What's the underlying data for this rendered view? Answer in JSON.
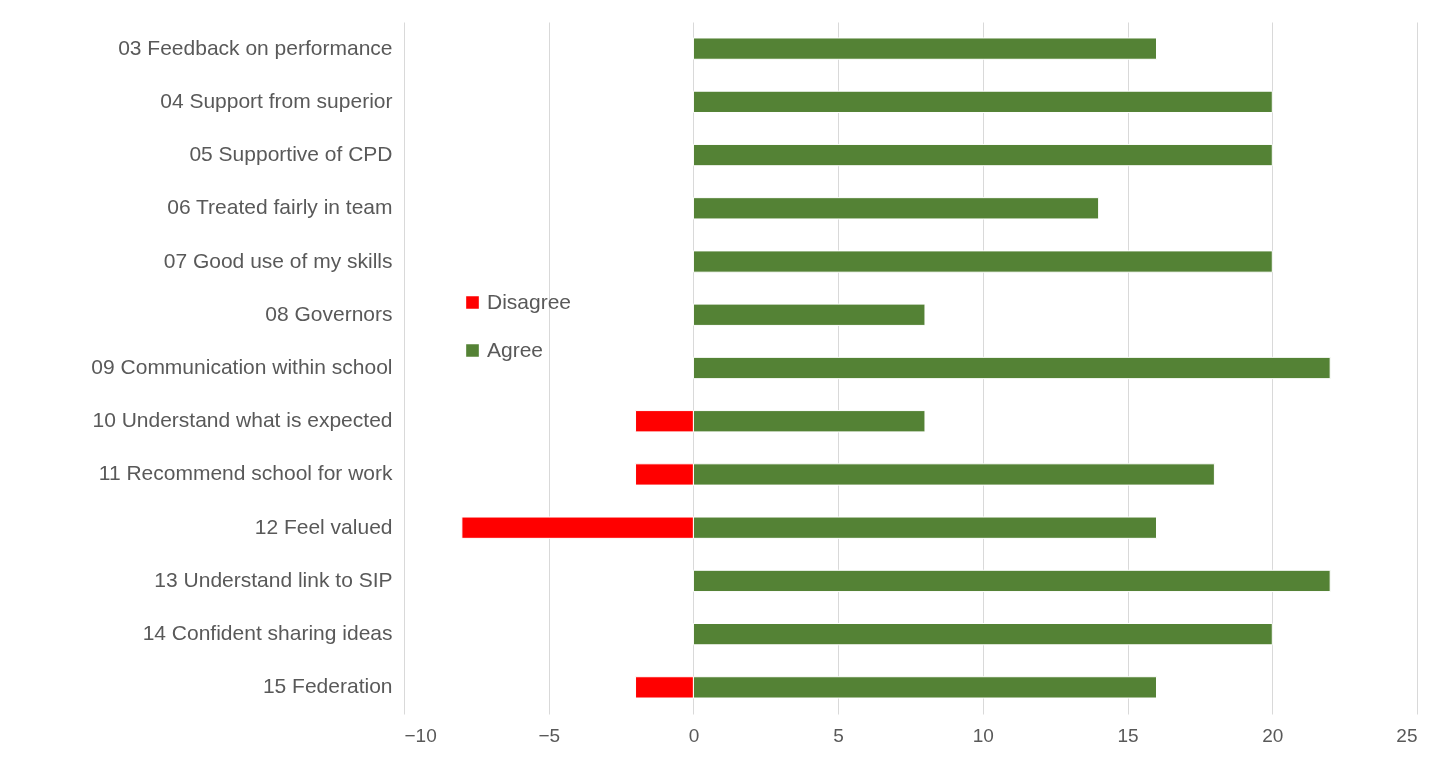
{
  "chart_data": {
    "type": "bar",
    "orientation": "horizontal",
    "stacked": true,
    "categories": [
      "03   Feedback on performance",
      "04   Support from superior",
      "05   Supportive of CPD",
      "06   Treated fairly in team",
      "07   Good use of my skills",
      "08   Governors",
      "09   Communication within school",
      "10   Understand what is expected",
      "11   Recommend school for work",
      "12   Feel valued",
      "13   Understand link to SIP",
      "14   Confident sharing ideas",
      "15   Federation"
    ],
    "series": [
      {
        "name": "Disagree",
        "color": "#ff0000",
        "values": [
          null,
          null,
          null,
          null,
          null,
          null,
          null,
          -2,
          -2,
          -8,
          null,
          null,
          -2
        ]
      },
      {
        "name": "Agree",
        "color": "#548235",
        "values": [
          16,
          20,
          20,
          14,
          20,
          8,
          22,
          8,
          18,
          16,
          22,
          20,
          16
        ]
      }
    ],
    "xlim": [
      -10,
      25
    ],
    "xticks": [
      -10,
      -5,
      0,
      5,
      10,
      15,
      20,
      25
    ],
    "grid": "x",
    "legend": "left"
  }
}
